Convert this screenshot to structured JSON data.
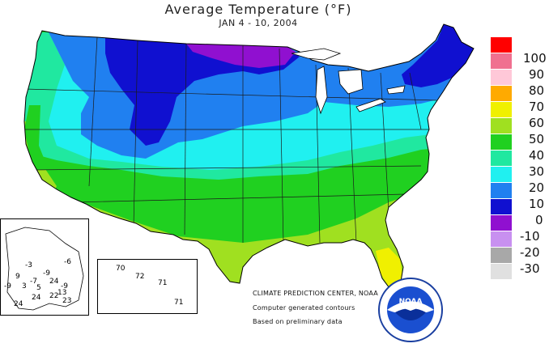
{
  "title": "Average Temperature (°F)",
  "subtitle": "JAN 4 - 10, 2004",
  "legend": [
    {
      "label": "100",
      "color": "#ff0000"
    },
    {
      "label": "90",
      "color": "#f07090"
    },
    {
      "label": "80",
      "color": "#ffc8d8"
    },
    {
      "label": "70",
      "color": "#ffaa00"
    },
    {
      "label": "60",
      "color": "#f0f000"
    },
    {
      "label": "50",
      "color": "#a0e020"
    },
    {
      "label": "40",
      "color": "#20d020"
    },
    {
      "label": "30",
      "color": "#20e8a0"
    },
    {
      "label": "20",
      "color": "#20f0f0"
    },
    {
      "label": "10",
      "color": "#2080f0"
    },
    {
      "label": "0",
      "color": "#1010d0"
    },
    {
      "label": "-10",
      "color": "#9010d0"
    },
    {
      "label": "-20",
      "color": "#c890f0"
    },
    {
      "label": "-30",
      "color": "#a8a8a8"
    },
    {
      "label": "",
      "color": "#e0e0e0"
    }
  ],
  "credits": {
    "line1": "CLIMATE PREDICTION CENTER, NOAA",
    "line2": "Computer generated contours",
    "line3": "Based on preliminary data"
  },
  "logo_text": "NOAA",
  "alaska_values": [
    "-6",
    "-3",
    "-9",
    "9",
    "3",
    "-7",
    "-9",
    "24",
    "5",
    "-9",
    "13",
    "24",
    "22",
    "23",
    "24"
  ],
  "hawaii_values": [
    "70",
    "72",
    "71",
    "71"
  ]
}
